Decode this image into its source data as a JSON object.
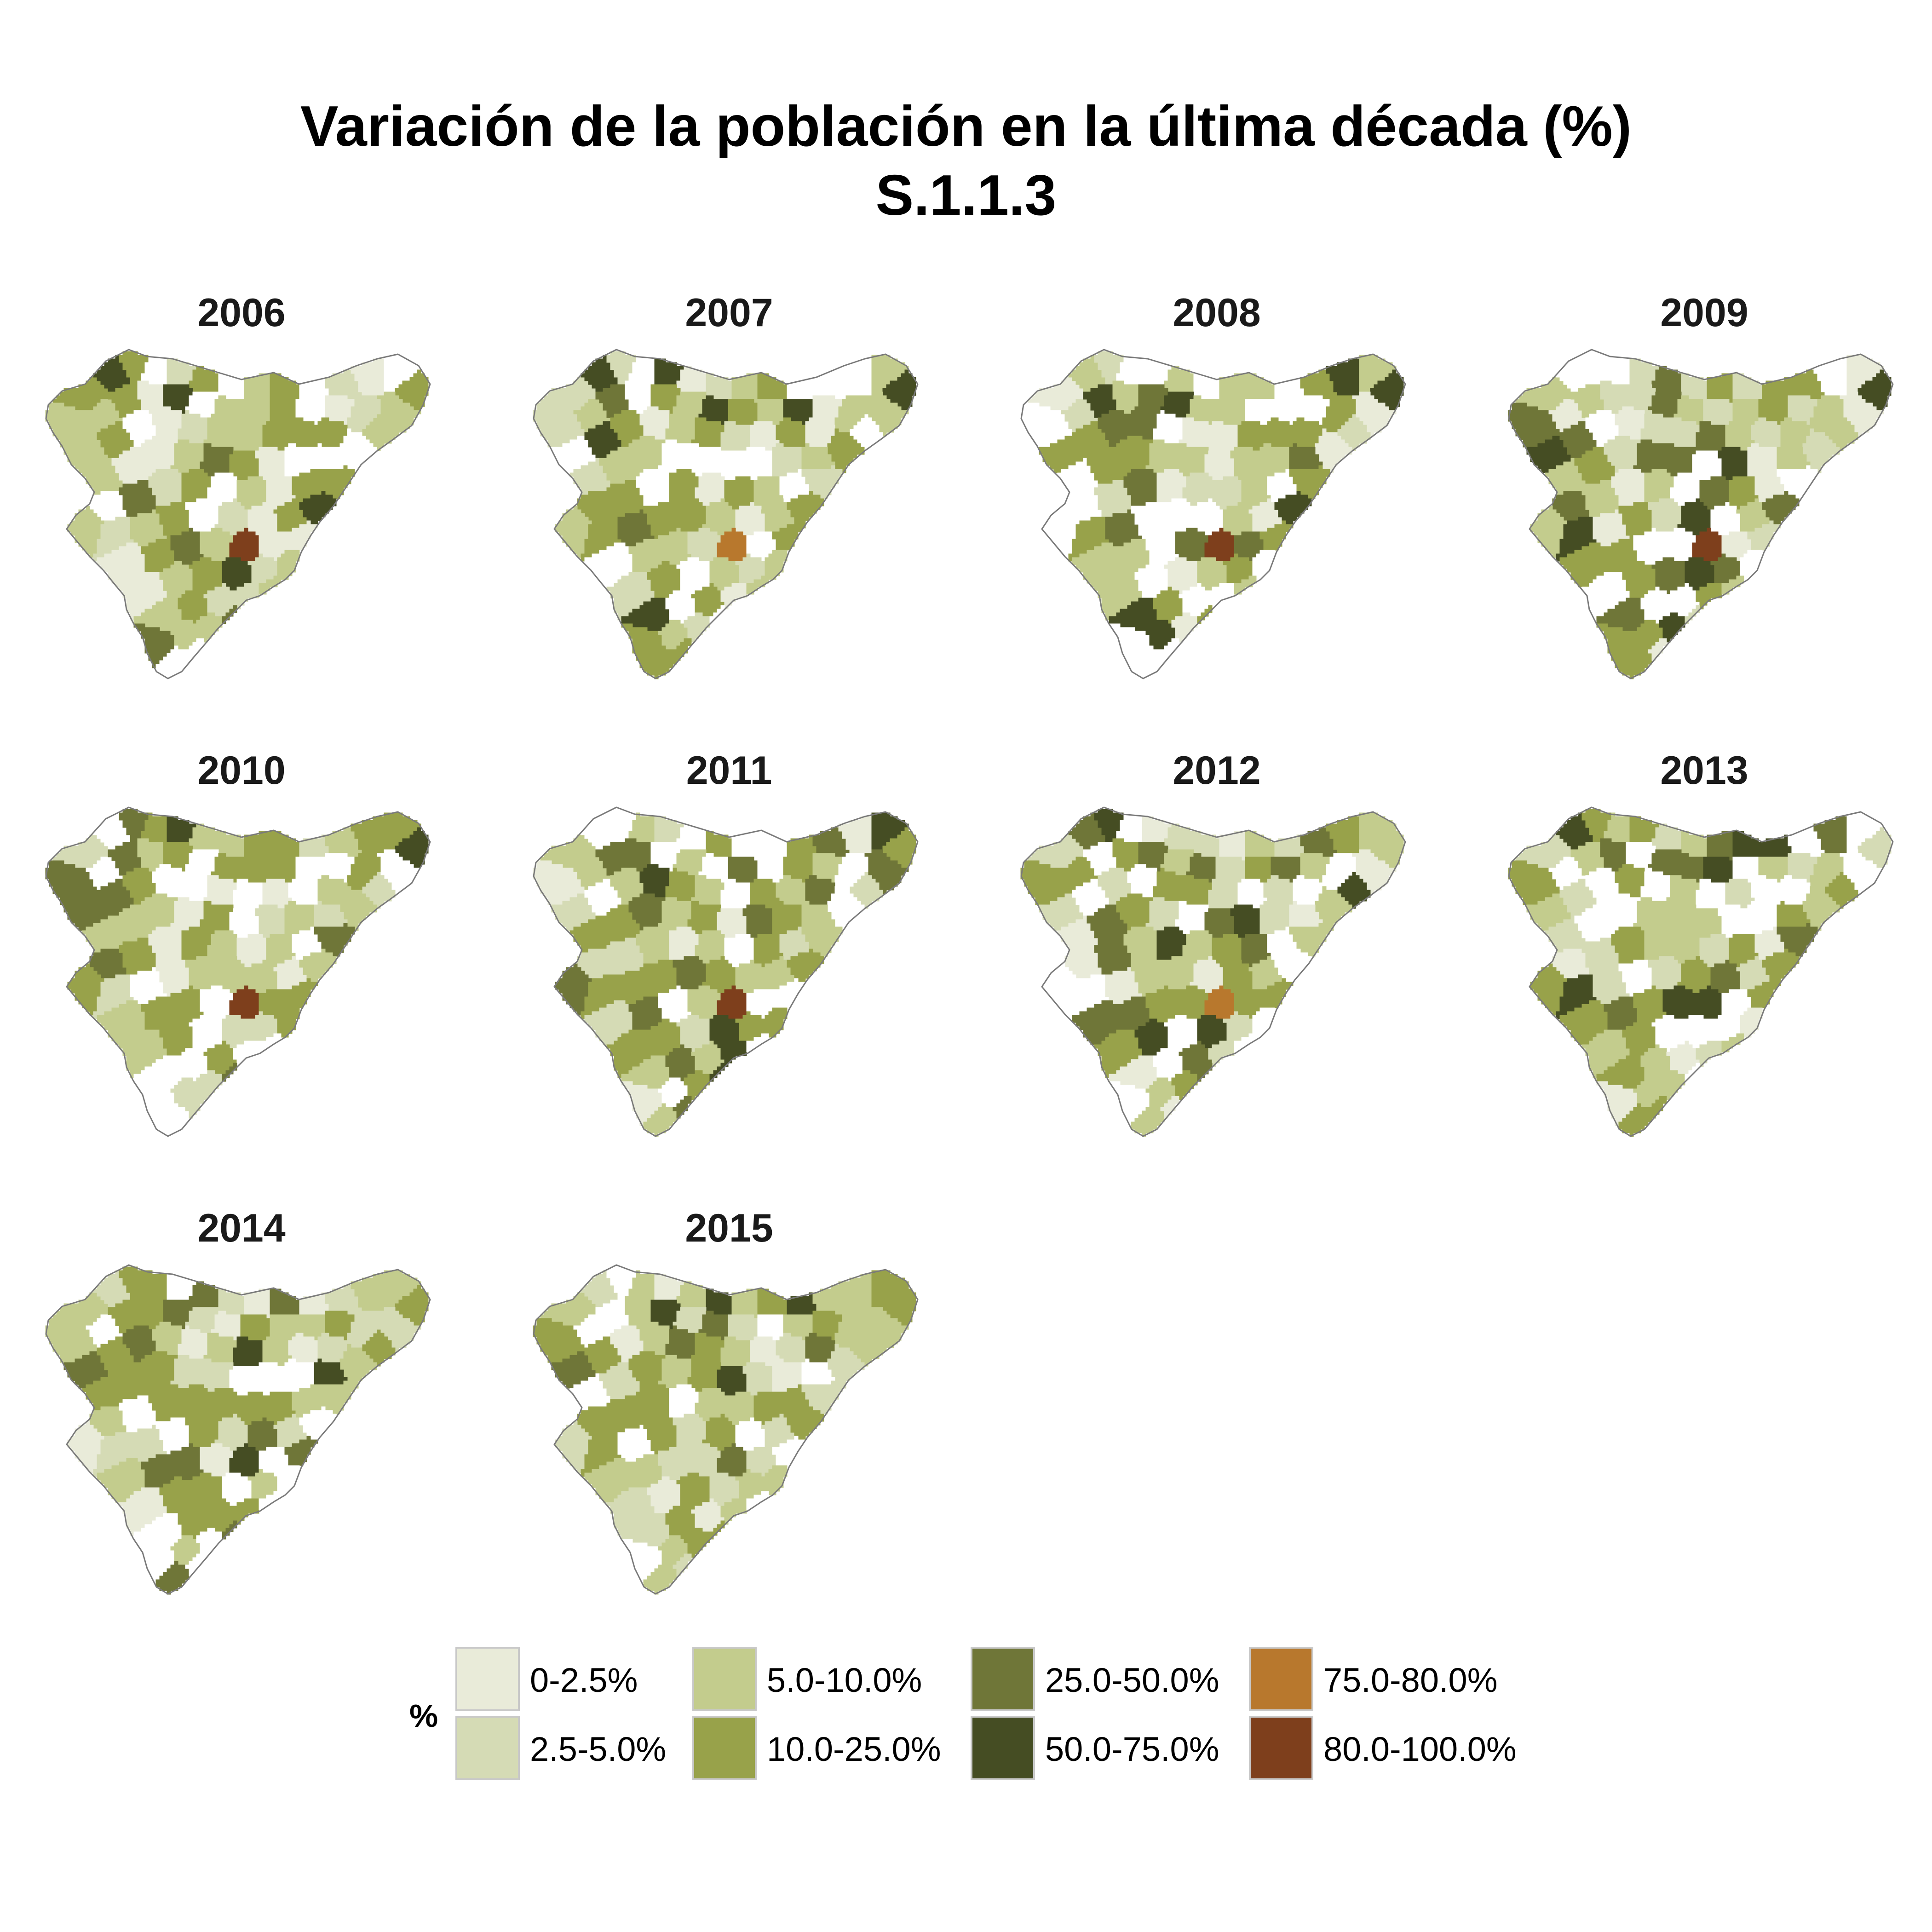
{
  "title": {
    "line1": "Variación de la población en la última década (%)",
    "line2": "S.1.1.3"
  },
  "panels": [
    {
      "year": "2006",
      "variant": 0
    },
    {
      "year": "2007",
      "variant": 1
    },
    {
      "year": "2008",
      "variant": 2
    },
    {
      "year": "2009",
      "variant": 3
    },
    {
      "year": "2010",
      "variant": 4
    },
    {
      "year": "2011",
      "variant": 5
    },
    {
      "year": "2012",
      "variant": 6
    },
    {
      "year": "2013",
      "variant": 7
    },
    {
      "year": "2014",
      "variant": 8
    },
    {
      "year": "2015",
      "variant": 9
    }
  ],
  "legend": {
    "title": "%",
    "items": [
      {
        "label": "0-2.5%",
        "color": "#e9ebd9"
      },
      {
        "label": "2.5-5.0%",
        "color": "#d5dbb5"
      },
      {
        "label": "5.0-10.0%",
        "color": "#c3cc8d"
      },
      {
        "label": "10.0-25.0%",
        "color": "#98a24a"
      },
      {
        "label": "25.0-50.0%",
        "color": "#6f7638"
      },
      {
        "label": "50.0-75.0%",
        "color": "#454d23"
      },
      {
        "label": "75.0-80.0%",
        "color": "#b8782d"
      },
      {
        "label": "80.0-100.0%",
        "color": "#7e3f1c"
      }
    ]
  },
  "colors": {
    "no_data": "#ffffff",
    "boundary": "#7a7a7a"
  }
}
